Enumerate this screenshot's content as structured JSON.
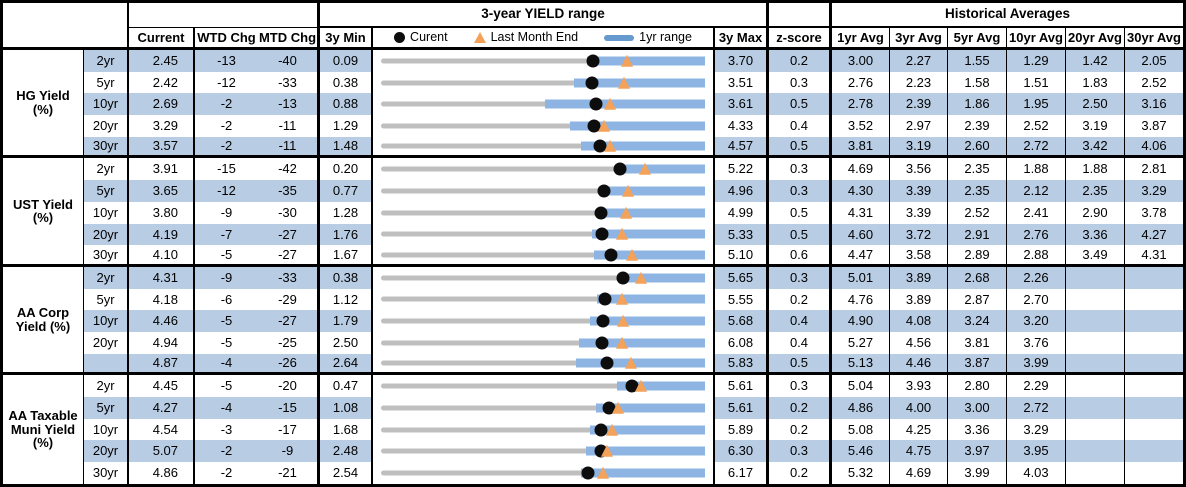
{
  "header": {
    "range_title": "3-year YIELD range",
    "hist_title": "Historical Averages",
    "col_current": "Current",
    "col_wtd": "WTD Chg",
    "col_mtd": "MTD Chg",
    "col_min": "3y Min",
    "col_max": "3y Max",
    "col_z": "z-score",
    "avg_cols": [
      "1yr Avg",
      "3yr Avg",
      "5yr Avg",
      "10yr Avg",
      "20yr Avg",
      "30yr Avg"
    ],
    "legend": {
      "current": "Curent",
      "last_month": "Last Month End",
      "range": "1yr range"
    }
  },
  "colors": {
    "row_shade": "#B8CCE4",
    "bar_blue": "#8DB4E2",
    "track_gray": "#BFBFBF",
    "marker_orange": "#F4A259",
    "dot_black": "#0d0d0d",
    "legend_bar_blue": "#6699CE"
  },
  "chart_data": {
    "type": "bullet",
    "title": "3-year YIELD range",
    "x_units": "yield %",
    "legend": [
      "Curent (dot)",
      "Last Month End (triangle)",
      "1yr range (blue bar)"
    ],
    "groups": [
      {
        "label": "HG Yield (%)",
        "rows": [
          {
            "tenor": "2yr",
            "current": "2.45",
            "wtd": "-13",
            "mtd": "-40",
            "min": "0.09",
            "max": "3.70",
            "bar_1yr_low": 2.38,
            "last_month_end": 2.83,
            "z": "0.2",
            "avgs": [
              "3.00",
              "2.27",
              "1.55",
              "1.29",
              "1.42",
              "2.05"
            ]
          },
          {
            "tenor": "5yr",
            "current": "2.42",
            "wtd": "-12",
            "mtd": "-33",
            "min": "0.38",
            "max": "3.51",
            "bar_1yr_low": 2.24,
            "last_month_end": 2.73,
            "z": "0.3",
            "avgs": [
              "2.76",
              "2.23",
              "1.58",
              "1.51",
              "1.83",
              "2.52"
            ]
          },
          {
            "tenor": "10yr",
            "current": "2.69",
            "wtd": "-2",
            "mtd": "-13",
            "min": "0.88",
            "max": "3.61",
            "bar_1yr_low": 2.26,
            "last_month_end": 2.81,
            "z": "0.5",
            "avgs": [
              "2.78",
              "2.39",
              "1.86",
              "1.95",
              "2.50",
              "3.16"
            ]
          },
          {
            "tenor": "20yr",
            "current": "3.29",
            "wtd": "-2",
            "mtd": "-11",
            "min": "1.29",
            "max": "4.33",
            "bar_1yr_low": 3.06,
            "last_month_end": 3.38,
            "z": "0.4",
            "avgs": [
              "3.52",
              "2.97",
              "2.39",
              "2.52",
              "3.19",
              "3.87"
            ]
          },
          {
            "tenor": "30yr",
            "current": "3.57",
            "wtd": "-2",
            "mtd": "-11",
            "min": "1.48",
            "max": "4.57",
            "bar_1yr_low": 3.39,
            "last_month_end": 3.66,
            "z": "0.5",
            "avgs": [
              "3.81",
              "3.19",
              "2.60",
              "2.72",
              "3.42",
              "4.06"
            ]
          }
        ]
      },
      {
        "label": "UST Yield (%)",
        "rows": [
          {
            "tenor": "2yr",
            "current": "3.91",
            "wtd": "-15",
            "mtd": "-42",
            "min": "0.20",
            "max": "5.22",
            "bar_1yr_low": 3.86,
            "last_month_end": 4.29,
            "z": "0.3",
            "avgs": [
              "4.69",
              "3.56",
              "2.35",
              "1.88",
              "1.88",
              "2.81"
            ]
          },
          {
            "tenor": "5yr",
            "current": "3.65",
            "wtd": "-12",
            "mtd": "-35",
            "min": "0.77",
            "max": "4.96",
            "bar_1yr_low": 3.62,
            "last_month_end": 3.96,
            "z": "0.3",
            "avgs": [
              "4.30",
              "3.39",
              "2.35",
              "2.12",
              "2.35",
              "3.29"
            ]
          },
          {
            "tenor": "10yr",
            "current": "3.80",
            "wtd": "-9",
            "mtd": "-30",
            "min": "1.28",
            "max": "4.99",
            "bar_1yr_low": 3.76,
            "last_month_end": 4.08,
            "z": "0.5",
            "avgs": [
              "4.31",
              "3.39",
              "2.52",
              "2.41",
              "2.90",
              "3.78"
            ]
          },
          {
            "tenor": "20yr",
            "current": "4.19",
            "wtd": "-7",
            "mtd": "-27",
            "min": "1.76",
            "max": "5.33",
            "bar_1yr_low": 4.09,
            "last_month_end": 4.42,
            "z": "0.5",
            "avgs": [
              "4.60",
              "3.72",
              "2.91",
              "2.76",
              "3.36",
              "4.27"
            ]
          },
          {
            "tenor": "30yr",
            "current": "4.10",
            "wtd": "-5",
            "mtd": "-27",
            "min": "1.67",
            "max": "5.10",
            "bar_1yr_low": 3.92,
            "last_month_end": 4.33,
            "z": "0.6",
            "avgs": [
              "4.47",
              "3.58",
              "2.89",
              "2.88",
              "3.49",
              "4.31"
            ]
          }
        ]
      },
      {
        "label": "AA Corp Yield (%)",
        "rows": [
          {
            "tenor": "2yr",
            "current": "4.31",
            "wtd": "-9",
            "mtd": "-33",
            "min": "0.38",
            "max": "5.65",
            "bar_1yr_low": 4.25,
            "last_month_end": 4.61,
            "z": "0.3",
            "avgs": [
              "5.01",
              "3.89",
              "2.68",
              "2.26",
              "",
              ""
            ]
          },
          {
            "tenor": "5yr",
            "current": "4.18",
            "wtd": "-6",
            "mtd": "-29",
            "min": "1.12",
            "max": "5.55",
            "bar_1yr_low": 4.08,
            "last_month_end": 4.42,
            "z": "0.2",
            "avgs": [
              "4.76",
              "3.89",
              "2.87",
              "2.70",
              "",
              ""
            ]
          },
          {
            "tenor": "10yr",
            "current": "4.46",
            "wtd": "-5",
            "mtd": "-27",
            "min": "1.79",
            "max": "5.68",
            "bar_1yr_low": 4.3,
            "last_month_end": 4.7,
            "z": "0.4",
            "avgs": [
              "4.90",
              "4.08",
              "3.24",
              "3.20",
              "",
              ""
            ]
          },
          {
            "tenor": "20yr",
            "current": "4.94",
            "wtd": "-5",
            "mtd": "-25",
            "min": "2.50",
            "max": "6.08",
            "bar_1yr_low": 4.69,
            "last_month_end": 5.16,
            "z": "0.4",
            "avgs": [
              "5.27",
              "4.56",
              "3.81",
              "3.76",
              "",
              ""
            ]
          },
          {
            "tenor": "",
            "current": "4.87",
            "wtd": "-4",
            "mtd": "-26",
            "min": "2.64",
            "max": "5.83",
            "bar_1yr_low": 4.56,
            "last_month_end": 5.1,
            "z": "0.5",
            "avgs": [
              "5.13",
              "4.46",
              "3.87",
              "3.99",
              "",
              ""
            ]
          }
        ]
      },
      {
        "label": "AA Taxable Muni Yield (%)",
        "rows": [
          {
            "tenor": "2yr",
            "current": "4.45",
            "wtd": "-5",
            "mtd": "-20",
            "min": "0.47",
            "max": "5.61",
            "bar_1yr_low": 4.22,
            "last_month_end": 4.59,
            "z": "0.3",
            "avgs": [
              "5.04",
              "3.93",
              "2.80",
              "2.29",
              "",
              ""
            ]
          },
          {
            "tenor": "5yr",
            "current": "4.27",
            "wtd": "-4",
            "mtd": "-15",
            "min": "1.08",
            "max": "5.61",
            "bar_1yr_low": 4.08,
            "last_month_end": 4.4,
            "z": "0.2",
            "avgs": [
              "4.86",
              "4.00",
              "3.00",
              "2.72",
              "",
              ""
            ]
          },
          {
            "tenor": "10yr",
            "current": "4.54",
            "wtd": "-3",
            "mtd": "-17",
            "min": "1.68",
            "max": "5.89",
            "bar_1yr_low": 4.4,
            "last_month_end": 4.68,
            "z": "0.2",
            "avgs": [
              "5.08",
              "4.25",
              "3.36",
              "3.29",
              "",
              ""
            ]
          },
          {
            "tenor": "20yr",
            "current": "5.07",
            "wtd": "-2",
            "mtd": "-9",
            "min": "2.48",
            "max": "6.30",
            "bar_1yr_low": 4.9,
            "last_month_end": 5.14,
            "z": "0.3",
            "avgs": [
              "5.46",
              "4.75",
              "3.97",
              "3.95",
              "",
              ""
            ]
          },
          {
            "tenor": "30yr",
            "current": "4.86",
            "wtd": "-2",
            "mtd": "-21",
            "min": "2.54",
            "max": "6.17",
            "bar_1yr_low": 4.78,
            "last_month_end": 5.03,
            "z": "0.2",
            "avgs": [
              "5.32",
              "4.69",
              "3.99",
              "4.03",
              "",
              ""
            ]
          }
        ]
      }
    ]
  }
}
